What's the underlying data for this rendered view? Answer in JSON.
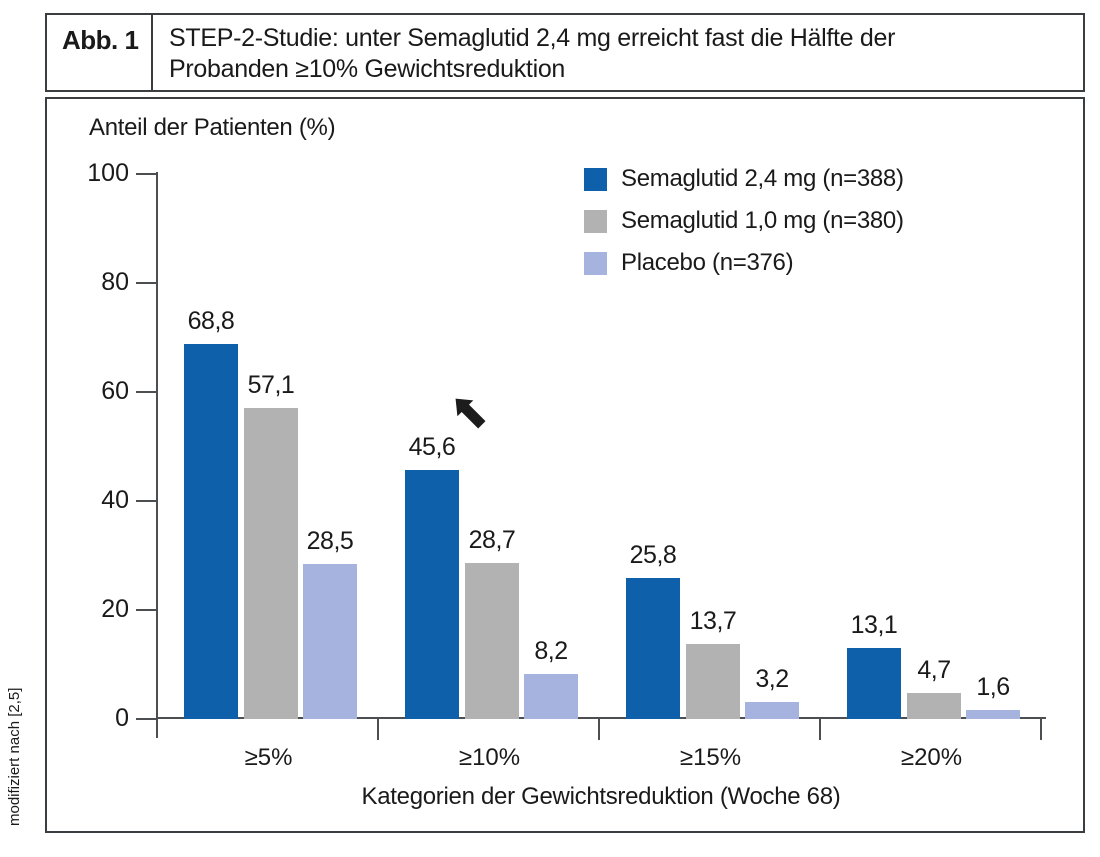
{
  "figure": {
    "label": "Abb. 1",
    "title_line1": "STEP-2-Studie: unter Semaglutid 2,4 mg erreicht fast die Hälfte der",
    "title_line2": "Probanden ≥10% Gewichtsreduktion",
    "source_note": "modifiziert nach [2,5]"
  },
  "chart_data": {
    "type": "bar",
    "title": "",
    "ylabel": "Anteil der Patienten (%)",
    "xlabel": "Kategorien der Gewichtsreduktion (Woche 68)",
    "ylim": [
      0,
      100
    ],
    "yticks": [
      0,
      20,
      40,
      60,
      80,
      100
    ],
    "grid": false,
    "legend_position": "top-right",
    "categories": [
      "≥5%",
      "≥10%",
      "≥15%",
      "≥20%"
    ],
    "series": [
      {
        "name": "Semaglutid 2,4 mg (n=388)",
        "color": "#0f60ab",
        "values": [
          68.8,
          45.6,
          25.8,
          13.1
        ],
        "labels": [
          "68,8",
          "45,6",
          "25,8",
          "13,1"
        ]
      },
      {
        "name": "Semaglutid 1,0 mg (n=380)",
        "color": "#b2b2b2",
        "values": [
          57.1,
          28.7,
          13.7,
          4.7
        ],
        "labels": [
          "57,1",
          "28,7",
          "13,7",
          "4,7"
        ]
      },
      {
        "name": "Placebo (n=376)",
        "color": "#a6b3de",
        "values": [
          28.5,
          8.2,
          3.2,
          1.6
        ],
        "labels": [
          "28,5",
          "8,2",
          "3,2",
          "1,6"
        ]
      }
    ],
    "annotation": {
      "type": "arrow",
      "target": "Semaglutid 2,4 mg ≥10% bar (45,6)",
      "color": "#1c1c1c"
    }
  }
}
